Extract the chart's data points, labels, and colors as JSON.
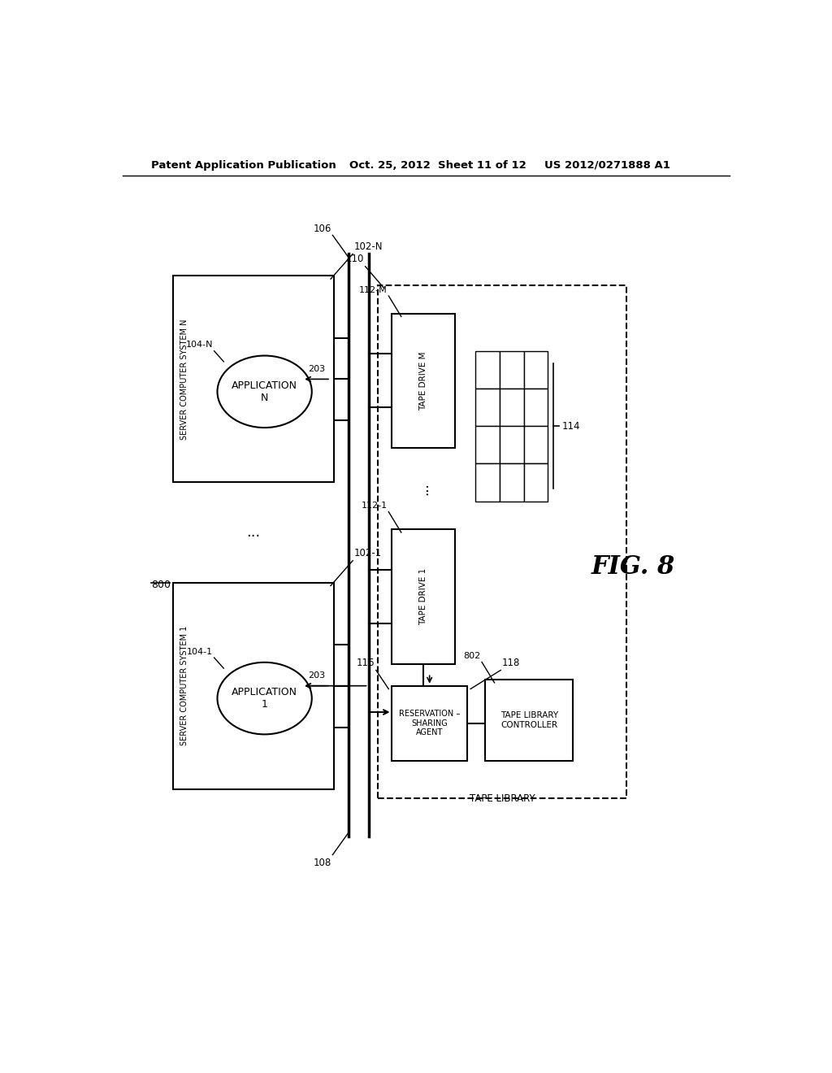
{
  "bg_color": "#ffffff",
  "header_left": "Patent Application Publication",
  "header_mid": "Oct. 25, 2012  Sheet 11 of 12",
  "header_right": "US 2012/0271888 A1",
  "fig_label": "FIG. 8",
  "label_800": "800",
  "label_102_N": "102-N",
  "label_102_1": "102-1",
  "label_106": "106",
  "label_108": "108",
  "label_110": "110",
  "label_114": "114",
  "label_116": "116",
  "label_118": "118",
  "label_112_M": "112-M",
  "label_112_1": "112-1",
  "label_104_N": "104-N",
  "label_104_1": "104-1",
  "label_203": "203",
  "label_802": "802",
  "text_server_N": "SERVER COMPUTER SYSTEM N",
  "text_server_1": "SERVER COMPUTER SYSTEM 1",
  "text_app_N": "APPLICATION\nN",
  "text_app_1": "APPLICATION\n1",
  "text_tape_drive_M": "TAPE DRIVE M",
  "text_tape_drive_1": "TAPE DRIVE 1",
  "text_tape_library": "TAPE LIBRARY",
  "text_reservation": "RESERVATION –\nSHARING\nAGENT",
  "text_tape_lib_ctrl": "TAPE LIBRARY\nCONTROLLER",
  "dots": "...",
  "lw_main": 1.5,
  "lw_thin": 1.0,
  "lw_bus": 2.5
}
